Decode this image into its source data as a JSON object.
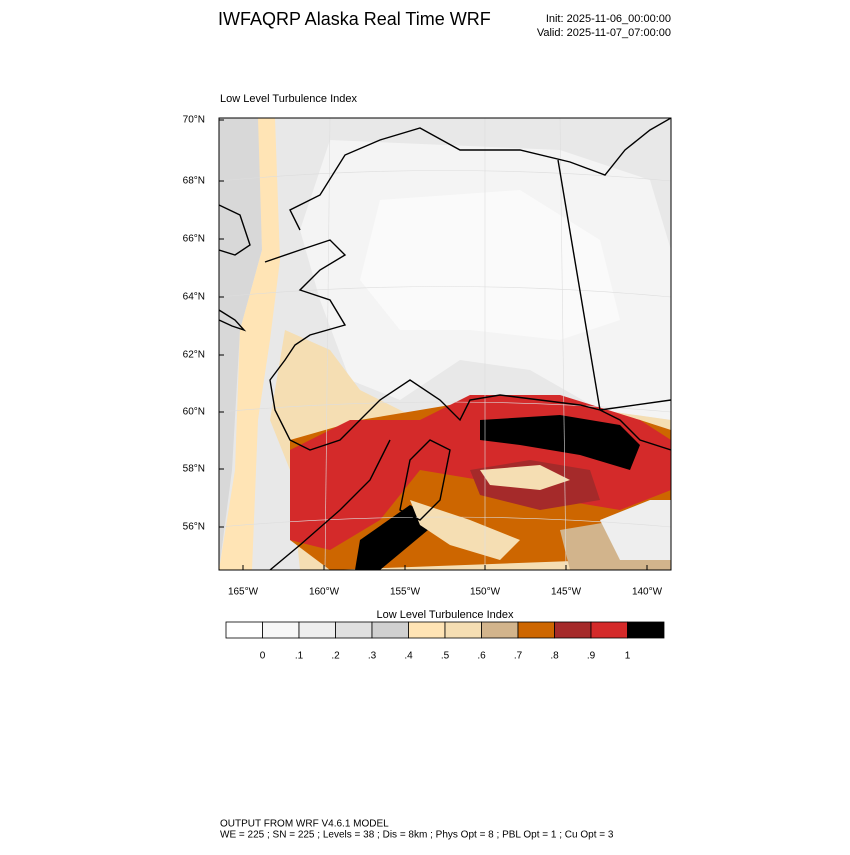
{
  "header": {
    "title": "IWFAQRP Alaska Real Time WRF",
    "init": "Init: 2025-11-06_00:00:00",
    "valid": "Valid: 2025-11-07_07:00:00"
  },
  "map": {
    "subtitle": "Low Level Turbulence Index",
    "lat_labels": [
      "70°N",
      "68°N",
      "66°N",
      "64°N",
      "62°N",
      "60°N",
      "58°N",
      "56°N"
    ],
    "lon_labels": [
      "165°W",
      "160°W",
      "155°W",
      "150°W",
      "145°W",
      "140°W"
    ]
  },
  "colorbar": {
    "title": "Low Level Turbulence Index",
    "colors": [
      "#ffffff",
      "#f7f7f7",
      "#eeeeee",
      "#e0e0e0",
      "#d0d0d0",
      "#ffe4b5",
      "#f5deb3",
      "#d2b48c",
      "#cd6600",
      "#a52a2a",
      "#d42a2a",
      "#000000"
    ],
    "ticks": [
      0,
      {
        "value": 0.1,
        "label": ".1"
      },
      {
        "value": 0.2,
        "label": ".2"
      },
      {
        "value": 0.3,
        "label": ".3"
      },
      {
        "value": 0.4,
        "label": ".4"
      },
      {
        "value": 0.5,
        "label": ".5"
      },
      {
        "value": 0.6,
        "label": ".6"
      },
      {
        "value": 0.7,
        "label": ".7"
      },
      {
        "value": 0.8,
        "label": ".8"
      },
      {
        "value": 0.9,
        "label": ".9"
      },
      1
    ]
  },
  "footer": {
    "line1": "OUTPUT FROM WRF V4.6.1 MODEL",
    "line2": "WE = 225 ; SN = 225 ; Levels = 38 ; Dis = 8km ; Phys Opt = 8 ; PBL Opt = 1 ; Cu Opt = 3"
  }
}
